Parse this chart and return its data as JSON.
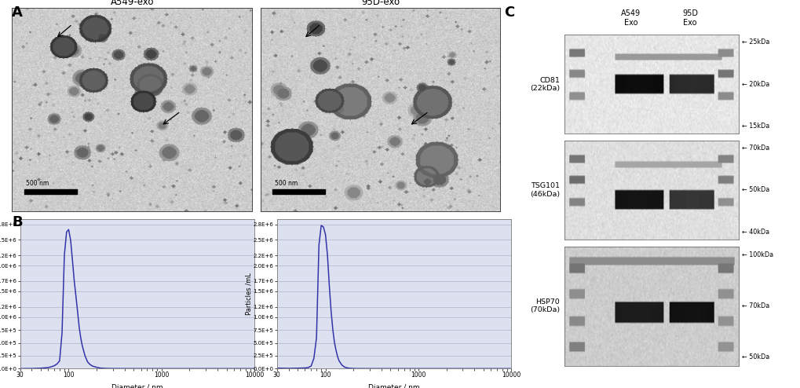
{
  "panel_labels": [
    "A",
    "B",
    "C"
  ],
  "tem_label1": "A549-exo",
  "tem_label2": "95D-exo",
  "scalebar_text": "500 nm",
  "nta_ylabel": "Particles /mL",
  "nta_xlabel": "Diameter / nm",
  "nta_yticks": [
    "0.0E+0",
    "2.5E+5",
    "5.0E+5",
    "7.5E+5",
    "1.0E+6",
    "1.2E+6",
    "1.5E+6",
    "1.7E+6",
    "2.0E+6",
    "2.2E+6",
    "2.5E+6",
    "2.8E+6"
  ],
  "nta_ytick_vals": [
    0,
    250000,
    500000,
    750000,
    1000000,
    1200000,
    1500000,
    1700000,
    2000000,
    2200000,
    2500000,
    2800000
  ],
  "nta_ylim": [
    0,
    2900000
  ],
  "nta_xlim_log": [
    30,
    10000
  ],
  "nta_line_color": "#3333aa",
  "wb_cd81_markers": [
    "25kDa",
    "20kDa",
    "15kDa"
  ],
  "wb_tsg101_markers": [
    "70kDa",
    "50kDa",
    "40kDa"
  ],
  "wb_hsp70_markers": [
    "100kDa",
    "70kDa",
    "50kDa"
  ],
  "bg_color": "#ffffff",
  "plot_bg_color": "#dde0ee",
  "grid_color": "#b0b4cc",
  "nta1_x": [
    30,
    40,
    50,
    60,
    65,
    70,
    75,
    80,
    85,
    90,
    95,
    100,
    105,
    110,
    115,
    120,
    125,
    130,
    135,
    140,
    150,
    160,
    170,
    180,
    200,
    220,
    250,
    300,
    400,
    500,
    700,
    1000,
    2000,
    5000,
    10000
  ],
  "nta1_y": [
    0,
    2000,
    8000,
    20000,
    35000,
    55000,
    90000,
    150000,
    700000,
    2200000,
    2650000,
    2700000,
    2500000,
    2100000,
    1700000,
    1400000,
    1100000,
    800000,
    600000,
    450000,
    250000,
    130000,
    80000,
    50000,
    25000,
    10000,
    4000,
    1500,
    500,
    100,
    30,
    10,
    2,
    0,
    0
  ],
  "nta2_x": [
    30,
    40,
    50,
    60,
    65,
    70,
    75,
    80,
    85,
    90,
    95,
    100,
    105,
    110,
    115,
    120,
    125,
    130,
    135,
    140,
    150,
    160,
    170,
    180,
    200,
    220,
    250,
    300,
    400,
    500,
    700,
    1000,
    2000,
    5000,
    10000
  ],
  "nta2_y": [
    10000,
    5000,
    8000,
    12000,
    20000,
    50000,
    200000,
    600000,
    2400000,
    2780000,
    2750000,
    2600000,
    2200000,
    1600000,
    1100000,
    750000,
    500000,
    350000,
    230000,
    150000,
    70000,
    30000,
    15000,
    8000,
    3000,
    1000,
    300,
    100,
    30,
    10,
    3,
    1,
    0,
    0,
    0
  ]
}
